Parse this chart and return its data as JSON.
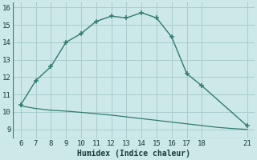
{
  "upper_x": [
    6,
    7,
    8,
    9,
    10,
    11,
    12,
    13,
    14,
    15,
    16,
    17,
    18,
    21
  ],
  "upper_y": [
    10.4,
    11.8,
    12.6,
    14.0,
    14.5,
    15.2,
    15.5,
    15.4,
    15.7,
    15.4,
    14.3,
    12.2,
    11.5,
    9.2
  ],
  "lower_x": [
    6,
    7,
    8,
    9,
    10,
    11,
    12,
    13,
    14,
    15,
    16,
    17,
    18,
    19,
    20,
    21
  ],
  "lower_y": [
    10.35,
    10.2,
    10.1,
    10.05,
    9.98,
    9.9,
    9.82,
    9.72,
    9.62,
    9.52,
    9.42,
    9.32,
    9.22,
    9.12,
    9.05,
    9.0
  ],
  "line_color": "#2e7d6e",
  "bg_color": "#cce8e8",
  "grid_color": "#aacccc",
  "xlabel": "Humidex (Indice chaleur)",
  "xlim": [
    5.5,
    21.5
  ],
  "ylim": [
    8.5,
    16.3
  ],
  "xticks": [
    6,
    7,
    8,
    9,
    10,
    11,
    12,
    13,
    14,
    15,
    16,
    17,
    18,
    21
  ],
  "yticks": [
    9,
    10,
    11,
    12,
    13,
    14,
    15,
    16
  ],
  "marker": "+"
}
